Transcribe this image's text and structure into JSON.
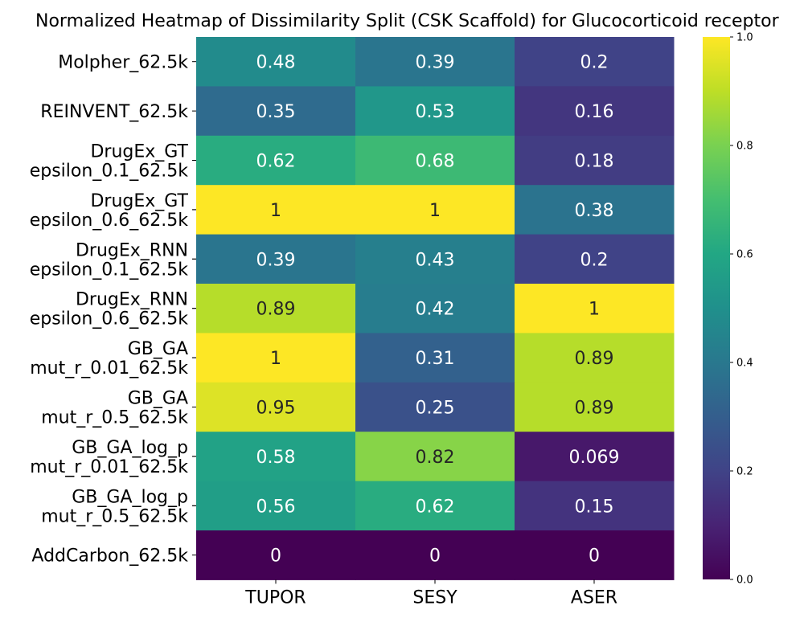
{
  "chart_data": {
    "type": "heatmap",
    "title": "Normalized Heatmap of Dissimilarity Split (CSK Scaffold) for Glucocorticoid receptor",
    "columns": [
      "TUPOR",
      "SESY",
      "ASER"
    ],
    "rows": [
      [
        "Molpher_62.5k"
      ],
      [
        "REINVENT_62.5k"
      ],
      [
        "DrugEx_GT",
        "epsilon_0.1_62.5k"
      ],
      [
        "DrugEx_GT",
        "epsilon_0.6_62.5k"
      ],
      [
        "DrugEx_RNN",
        "epsilon_0.1_62.5k"
      ],
      [
        "DrugEx_RNN",
        "epsilon_0.6_62.5k"
      ],
      [
        "GB_GA",
        "mut_r_0.01_62.5k"
      ],
      [
        "GB_GA",
        "mut_r_0.5_62.5k"
      ],
      [
        "GB_GA_log_p",
        "mut_r_0.01_62.5k"
      ],
      [
        "GB_GA_log_p",
        "mut_r_0.5_62.5k"
      ],
      [
        "AddCarbon_62.5k"
      ]
    ],
    "values": [
      [
        0.48,
        0.39,
        0.2
      ],
      [
        0.35,
        0.53,
        0.16
      ],
      [
        0.62,
        0.68,
        0.18
      ],
      [
        1,
        1,
        0.38
      ],
      [
        0.39,
        0.43,
        0.2
      ],
      [
        0.89,
        0.42,
        1
      ],
      [
        1,
        0.31,
        0.89
      ],
      [
        0.95,
        0.25,
        0.89
      ],
      [
        0.58,
        0.82,
        0.069
      ],
      [
        0.56,
        0.62,
        0.15
      ],
      [
        0,
        0,
        0
      ]
    ],
    "colorbar": {
      "colormap": "viridis",
      "range": [
        0.0,
        1.0
      ],
      "ticks": [
        "0.0",
        "0.2",
        "0.4",
        "0.6",
        "0.8",
        "1.0"
      ]
    }
  }
}
